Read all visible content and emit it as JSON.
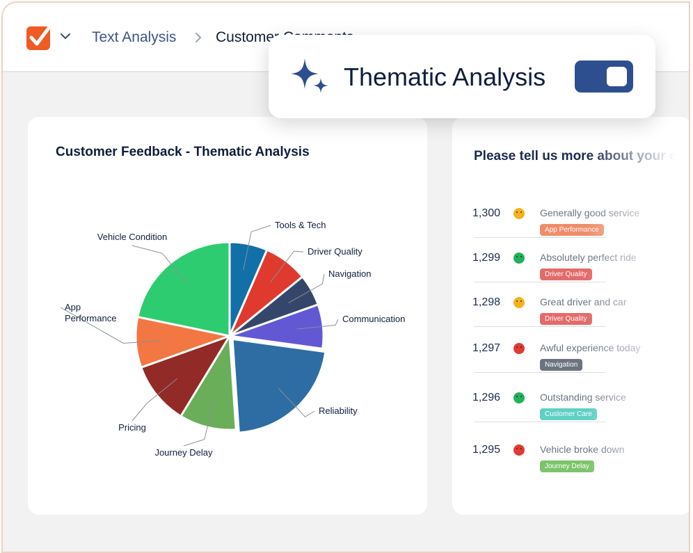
{
  "header": {
    "breadcrumb": [
      "Text Analysis",
      "Customer Comments"
    ]
  },
  "toggle_card": {
    "label": "Thematic Analysis",
    "enabled": true
  },
  "left_panel": {
    "title": "Customer Feedback - Thematic Analysis"
  },
  "chart_data": {
    "type": "pie",
    "title": "Customer Feedback - Thematic Analysis",
    "categories": [
      "Tools & Tech",
      "Driver Quality",
      "Navigation",
      "Communication",
      "Reliability",
      "Journey Delay",
      "Pricing",
      "App Performance",
      "Vehicle Condition"
    ],
    "values": [
      6,
      7,
      5,
      7,
      20,
      9,
      10,
      8,
      20
    ],
    "colors": [
      "#1170a8",
      "#e03a2f",
      "#34476b",
      "#6258d4",
      "#2e6da4",
      "#6aae5a",
      "#922a28",
      "#f37742",
      "#2ecc71"
    ],
    "label_lines": [
      [
        "Tools & Tech"
      ],
      [
        "Driver Quality"
      ],
      [
        "Navigation"
      ],
      [
        "Communication"
      ],
      [
        "Reliability"
      ],
      [
        "Journey Delay"
      ],
      [
        "Pricing"
      ],
      [
        "App",
        "Performance"
      ],
      [
        "Vehicle Condition"
      ]
    ]
  },
  "right_panel": {
    "title": "Please tell us more about your experience",
    "rows": [
      {
        "id": "1,300",
        "sentiment": "neutral",
        "text": "Generally good service",
        "tag": "App Performance",
        "tag_color": "#f08c6a"
      },
      {
        "id": "1,299",
        "sentiment": "happy",
        "text": "Absolutely perfect ride",
        "tag": "Driver Quality",
        "tag_color": "#e56a6a"
      },
      {
        "id": "1,298",
        "sentiment": "neutral",
        "text": "Great driver and car",
        "tag": "Driver Quality",
        "tag_color": "#e56a6a"
      },
      {
        "id": "1,297",
        "sentiment": "sad",
        "text": "Awful experience today",
        "tag": "Navigation",
        "tag_color": "#6b7280"
      },
      {
        "id": "1,296",
        "sentiment": "happy",
        "text": "Outstanding service",
        "tag": "Customer Care",
        "tag_color": "#5fd0c4"
      },
      {
        "id": "1,295",
        "sentiment": "sad",
        "text": "Vehicle broke down",
        "tag": "Journey Delay",
        "tag_color": "#7cc46a"
      }
    ]
  }
}
